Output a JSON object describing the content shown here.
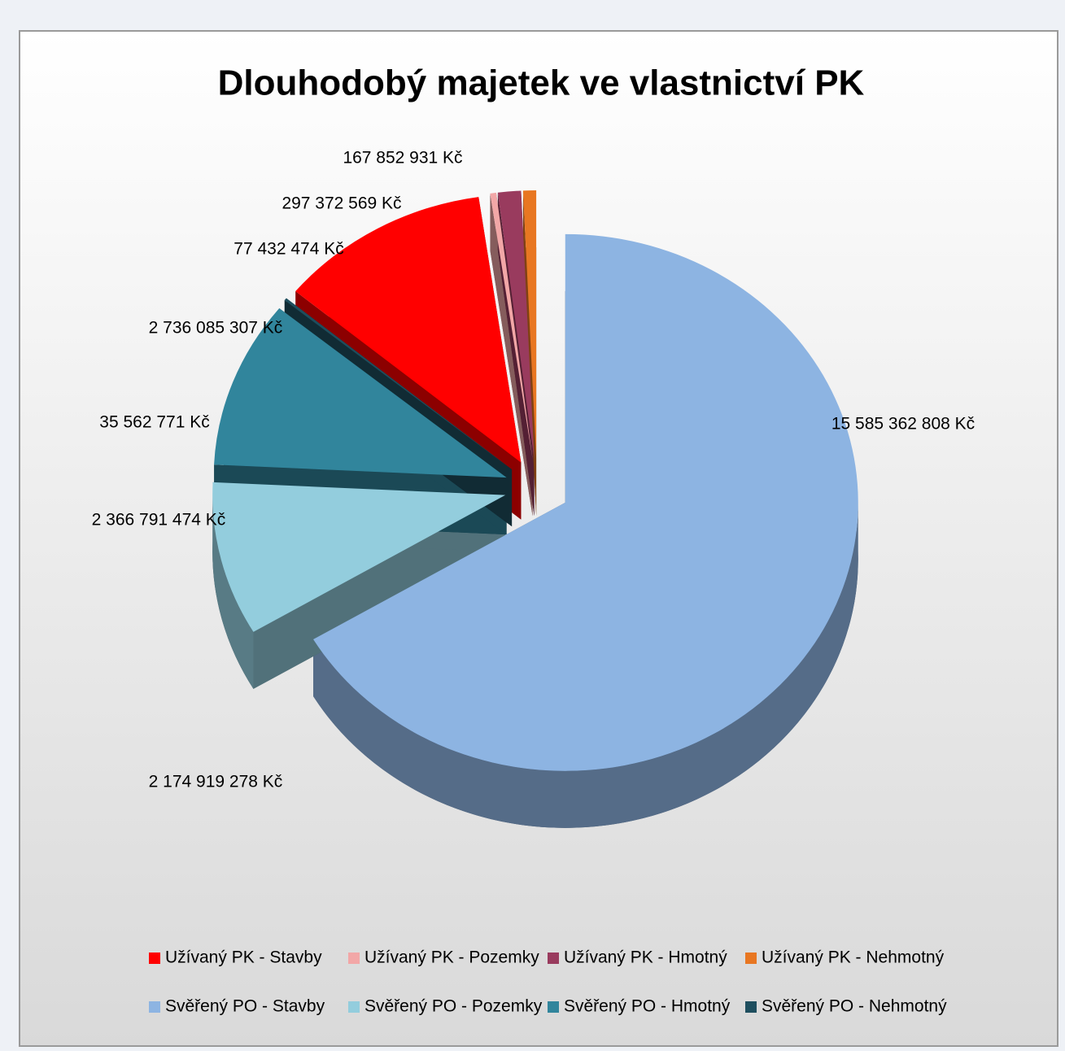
{
  "chart_data": {
    "type": "pie",
    "title": "Dlouhodobý majetek ve vlastnictví PK",
    "categories": [
      "Užívaný PK - Stavby",
      "Užívaný PK - Pozemky",
      "Užívaný PK - Hmotný",
      "Užívaný PK - Nehmotný",
      "Svěřený PO - Stavby",
      "Svěřený PO - Pozemky",
      "Svěřený PO - Hmotný",
      "Svěřený PO - Nehmotný"
    ],
    "values": [
      2736085307,
      77432474,
      297372569,
      167852931,
      15585362808,
      2174919278,
      2366791474,
      35562771
    ],
    "value_labels": [
      "2 736 085 307 Kč",
      "77 432 474 Kč",
      "297 372 569 Kč",
      "167 852 931 Kč",
      "15 585 362 808 Kč",
      "2 174 919 278 Kč",
      "2 366 791 474 Kč",
      "35 562 771 Kč"
    ],
    "colors": [
      "#ff0000",
      "#f2a7a7",
      "#993b5e",
      "#e87722",
      "#8db4e2",
      "#93cddd",
      "#31859c",
      "#1e4e5e"
    ],
    "legend": "bottom"
  }
}
